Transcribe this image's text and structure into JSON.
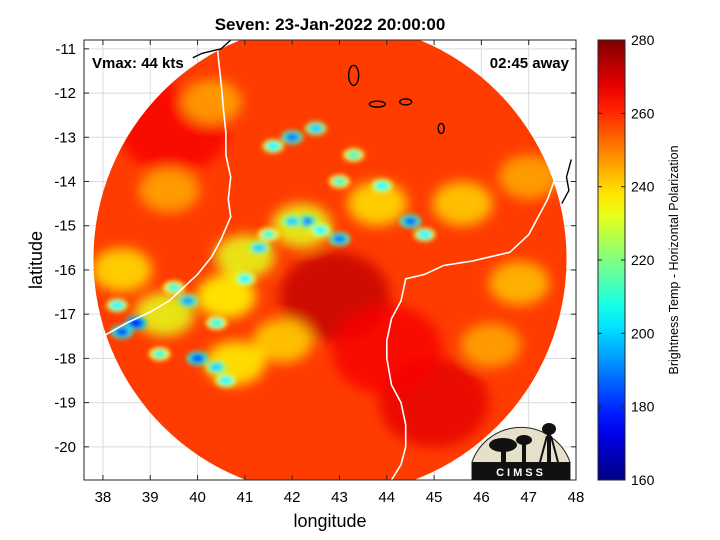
{
  "chart_data": {
    "type": "heatmap",
    "title": "Seven: 23-Jan-2022 20:00:00",
    "xlabel": "longitude",
    "ylabel": "latitude",
    "xlim": [
      37.6,
      48.0
    ],
    "ylim": [
      -20.75,
      -10.8
    ],
    "x_ticks": [
      38,
      39,
      40,
      41,
      42,
      43,
      44,
      45,
      46,
      47,
      48
    ],
    "y_ticks": [
      -11,
      -12,
      -13,
      -14,
      -15,
      -16,
      -17,
      -18,
      -19,
      -20
    ],
    "grid": true,
    "annotations": {
      "vmax": "Vmax: 44 kts",
      "time_away": "02:45 away"
    },
    "colorbar": {
      "label": "Brightness Temp - Horizontal Polarization",
      "range": [
        160,
        280
      ],
      "ticks": [
        160,
        180,
        200,
        220,
        240,
        260,
        280
      ],
      "colormap": "jet"
    },
    "logo_text": "CIMSS",
    "field": {
      "center": [
        42.8,
        -15.75
      ],
      "swath_radius_deg": 5.0,
      "background_value": 258,
      "cold_spots": [
        {
          "lon": 42.0,
          "lat": -13.0,
          "value": 190
        },
        {
          "lon": 42.5,
          "lat": -12.8,
          "value": 200
        },
        {
          "lon": 41.6,
          "lat": -13.2,
          "value": 205
        },
        {
          "lon": 42.3,
          "lat": -14.9,
          "value": 192
        },
        {
          "lon": 42.0,
          "lat": -14.9,
          "value": 200
        },
        {
          "lon": 43.0,
          "lat": -15.3,
          "value": 190
        },
        {
          "lon": 42.6,
          "lat": -15.1,
          "value": 205
        },
        {
          "lon": 44.5,
          "lat": -14.9,
          "value": 188
        },
        {
          "lon": 44.8,
          "lat": -15.2,
          "value": 205
        },
        {
          "lon": 43.9,
          "lat": -14.1,
          "value": 205
        },
        {
          "lon": 43.3,
          "lat": -13.4,
          "value": 212
        },
        {
          "lon": 43.0,
          "lat": -14.0,
          "value": 212
        },
        {
          "lon": 41.5,
          "lat": -15.2,
          "value": 210
        },
        {
          "lon": 41.3,
          "lat": -15.5,
          "value": 200
        },
        {
          "lon": 41.0,
          "lat": -16.2,
          "value": 205
        },
        {
          "lon": 38.7,
          "lat": -17.2,
          "value": 175
        },
        {
          "lon": 38.4,
          "lat": -17.4,
          "value": 185
        },
        {
          "lon": 38.3,
          "lat": -16.8,
          "value": 205
        },
        {
          "lon": 39.8,
          "lat": -16.7,
          "value": 195
        },
        {
          "lon": 39.5,
          "lat": -16.4,
          "value": 210
        },
        {
          "lon": 40.0,
          "lat": -18.0,
          "value": 185
        },
        {
          "lon": 40.4,
          "lat": -18.2,
          "value": 200
        },
        {
          "lon": 40.6,
          "lat": -18.5,
          "value": 205
        },
        {
          "lon": 40.4,
          "lat": -17.2,
          "value": 208
        },
        {
          "lon": 39.2,
          "lat": -17.9,
          "value": 210
        }
      ],
      "cool_regions": [
        {
          "lon": 42.2,
          "lat": -15.0,
          "value": 232
        },
        {
          "lon": 41.0,
          "lat": -15.7,
          "value": 232
        },
        {
          "lon": 40.6,
          "lat": -16.6,
          "value": 235
        },
        {
          "lon": 39.3,
          "lat": -17.0,
          "value": 232
        },
        {
          "lon": 38.4,
          "lat": -16.0,
          "value": 238
        },
        {
          "lon": 43.8,
          "lat": -14.5,
          "value": 238
        },
        {
          "lon": 41.8,
          "lat": -17.6,
          "value": 240
        },
        {
          "lon": 40.8,
          "lat": -18.1,
          "value": 236
        },
        {
          "lon": 45.6,
          "lat": -14.5,
          "value": 240
        },
        {
          "lon": 46.8,
          "lat": -16.3,
          "value": 242
        },
        {
          "lon": 46.2,
          "lat": -17.7,
          "value": 245
        },
        {
          "lon": 47.0,
          "lat": -13.9,
          "value": 245
        },
        {
          "lon": 39.4,
          "lat": -14.2,
          "value": 245
        },
        {
          "lon": 40.3,
          "lat": -12.2,
          "value": 245
        }
      ],
      "warm_regions": [
        {
          "lon": 42.9,
          "lat": -16.6,
          "value": 272
        },
        {
          "lon": 45.0,
          "lat": -19.0,
          "value": 268
        },
        {
          "lon": 39.5,
          "lat": -12.8,
          "value": 266
        },
        {
          "lon": 44.0,
          "lat": -17.8,
          "value": 266
        }
      ]
    }
  }
}
